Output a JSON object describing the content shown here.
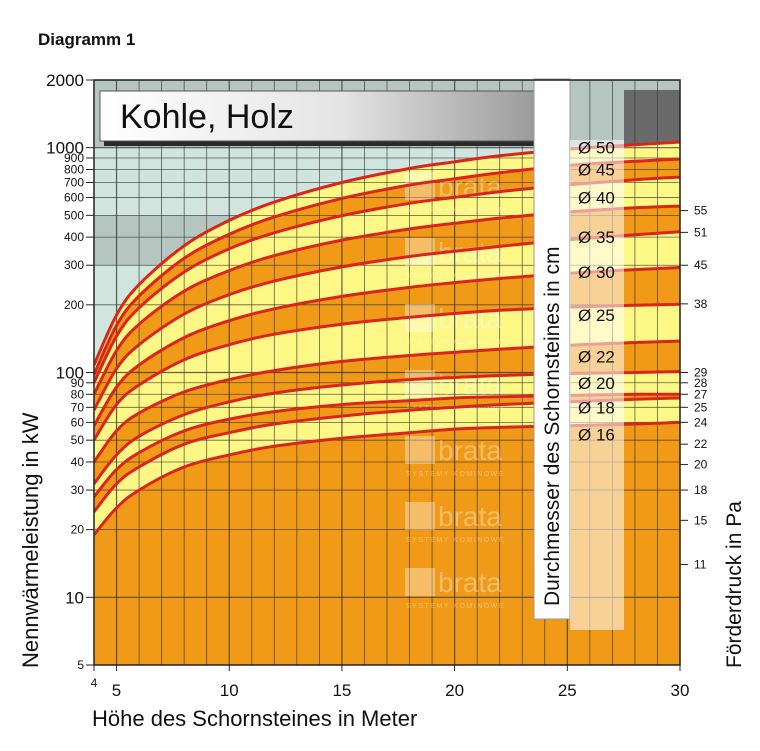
{
  "diagram_label": "Diagramm 1",
  "chart_data": {
    "type": "line",
    "title": "Kohle, Holz",
    "xlabel": "Höhe des Schornsteines in Meter",
    "ylabel": "Nennwärmeleistung in kW",
    "y2label": "Förderdruck in Pa",
    "diameter_label": "Durchmesser des Schornsteines in cm",
    "x_scale": "linear",
    "y_scale": "log",
    "xlim": [
      4,
      30
    ],
    "ylim": [
      5,
      2000
    ],
    "x_ticks": [
      "4",
      "5",
      "10",
      "15",
      "20",
      "25",
      "30"
    ],
    "y_ticks": [
      {
        "value": 2000,
        "label": "2000",
        "major": true
      },
      {
        "value": 1000,
        "label": "1000",
        "major": true
      },
      {
        "value": 900,
        "label": "900",
        "major": false
      },
      {
        "value": 800,
        "label": "800",
        "major": false
      },
      {
        "value": 700,
        "label": "700",
        "major": false
      },
      {
        "value": 600,
        "label": "600",
        "major": false
      },
      {
        "value": 500,
        "label": "500",
        "major": false
      },
      {
        "value": 400,
        "label": "400",
        "major": false
      },
      {
        "value": 300,
        "label": "300",
        "major": false
      },
      {
        "value": 200,
        "label": "200",
        "major": false
      },
      {
        "value": 100,
        "label": "100",
        "major": true
      },
      {
        "value": 90,
        "label": "90",
        "major": false
      },
      {
        "value": 80,
        "label": "80",
        "major": false
      },
      {
        "value": 70,
        "label": "70",
        "major": false
      },
      {
        "value": 60,
        "label": "60",
        "major": false
      },
      {
        "value": 50,
        "label": "50",
        "major": false
      },
      {
        "value": 40,
        "label": "40",
        "major": false
      },
      {
        "value": 30,
        "label": "30",
        "major": false
      },
      {
        "value": 20,
        "label": "20",
        "major": false
      },
      {
        "value": 10,
        "label": "10",
        "major": true
      },
      {
        "value": 5,
        "label": "5",
        "major": false
      }
    ],
    "pressure_ticks": [
      {
        "y": 525,
        "label": "55"
      },
      {
        "y": 420,
        "label": "51"
      },
      {
        "y": 300,
        "label": "45"
      },
      {
        "y": 202,
        "label": "38"
      },
      {
        "y": 100,
        "label": "29"
      },
      {
        "y": 90,
        "label": "28"
      },
      {
        "y": 80,
        "label": "27"
      },
      {
        "y": 70,
        "label": "25"
      },
      {
        "y": 60,
        "label": "24"
      },
      {
        "y": 48,
        "label": "22"
      },
      {
        "y": 39,
        "label": "20"
      },
      {
        "y": 30,
        "label": "18"
      },
      {
        "y": 22,
        "label": "15"
      },
      {
        "y": 14,
        "label": "11"
      }
    ],
    "curve_x": [
      4,
      5,
      6,
      8,
      10,
      12,
      15,
      18,
      20,
      22,
      25,
      28,
      30
    ],
    "curves": [
      [
        19,
        25,
        30,
        38,
        43,
        47,
        51,
        54,
        56,
        57,
        58,
        59,
        60
      ],
      [
        24,
        32,
        38,
        48,
        54,
        59,
        64,
        68,
        70,
        72,
        74,
        76,
        77
      ],
      [
        28,
        37,
        44,
        55,
        62,
        67,
        72,
        75,
        77,
        78,
        79,
        80,
        80
      ],
      [
        32,
        43,
        52,
        65,
        74,
        81,
        88,
        93,
        95,
        97,
        99,
        100,
        101
      ],
      [
        40,
        55,
        66,
        82,
        93,
        102,
        112,
        119,
        123,
        127,
        132,
        136,
        138
      ],
      [
        50,
        72,
        88,
        114,
        133,
        148,
        164,
        176,
        183,
        189,
        195,
        199,
        201
      ],
      [
        58,
        86,
        108,
        143,
        170,
        192,
        218,
        239,
        251,
        262,
        276,
        287,
        293
      ],
      [
        68,
        104,
        133,
        182,
        222,
        255,
        295,
        328,
        346,
        364,
        389,
        410,
        423
      ],
      [
        80,
        125,
        164,
        230,
        284,
        331,
        388,
        435,
        461,
        486,
        517,
        540,
        550
      ],
      [
        90,
        145,
        194,
        280,
        355,
        418,
        498,
        566,
        601,
        637,
        683,
        720,
        740
      ],
      [
        98,
        162,
        219,
        322,
        412,
        492,
        595,
        682,
        727,
        774,
        833,
        870,
        890
      ],
      [
        108,
        180,
        246,
        366,
        475,
        573,
        700,
        808,
        865,
        920,
        985,
        1030,
        1060
      ]
    ],
    "diameter_labels": [
      {
        "label": "Ø 50",
        "y": 1000
      },
      {
        "label": "Ø 45",
        "y": 800
      },
      {
        "label": "Ø 40",
        "y": 600
      },
      {
        "label": "Ø 35",
        "y": 400
      },
      {
        "label": "Ø 30",
        "y": 280
      },
      {
        "label": "Ø 25",
        "y": 180
      },
      {
        "label": "Ø 22",
        "y": 118
      },
      {
        "label": "Ø 20",
        "y": 90
      },
      {
        "label": "Ø 18",
        "y": 70
      },
      {
        "label": "Ø 16",
        "y": 53
      }
    ],
    "watermark": "brata",
    "watermark_sub": "SYSTEMY KOMINOWE",
    "colors": {
      "band_orange": "#f09a17",
      "band_yellow": "#fdf785",
      "curve_red": "#d8261f",
      "background_teal": "#cfe5dd",
      "background_gray": "#b5c5bf",
      "grid": "#2f2f2f"
    }
  }
}
